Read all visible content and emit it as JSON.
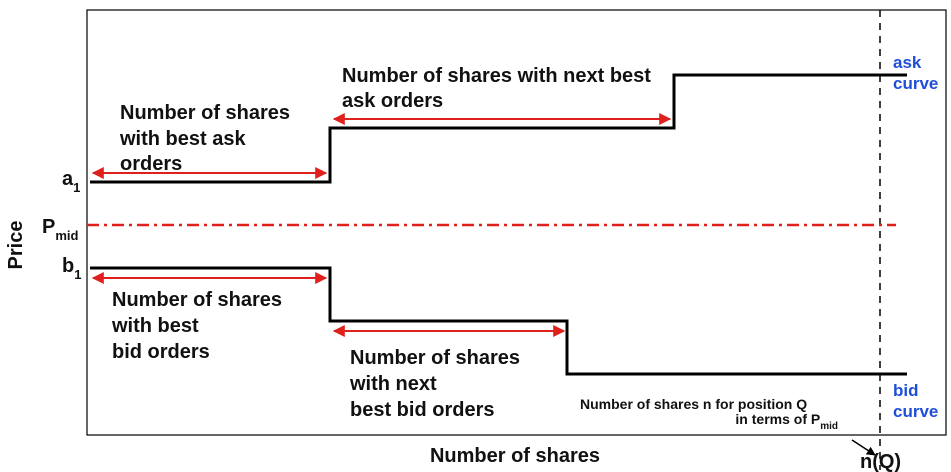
{
  "axes": {
    "y_label": "Price",
    "x_label": "Number of shares"
  },
  "levels": {
    "ask_best": {
      "base": "a",
      "sub": "1"
    },
    "mid": {
      "base": "P",
      "sub": "mid"
    },
    "bid_best": {
      "base": "b",
      "sub": "1"
    }
  },
  "annotations": {
    "best_ask": [
      "Number of shares",
      "with best ask",
      "orders"
    ],
    "next_ask": [
      "Number of shares with next best",
      "ask orders"
    ],
    "best_bid": [
      "Number of shares",
      "with best",
      "bid orders"
    ],
    "next_bid": [
      "Number of shares",
      "with next",
      "best bid orders"
    ]
  },
  "curves": {
    "ask": [
      "ask",
      "curve"
    ],
    "bid": [
      "bid",
      "curve"
    ]
  },
  "position_note": {
    "line1": "Number of shares n for position Q",
    "line2": "in terms of P",
    "line2_sub": "mid"
  },
  "n_q": "n(Q)"
}
